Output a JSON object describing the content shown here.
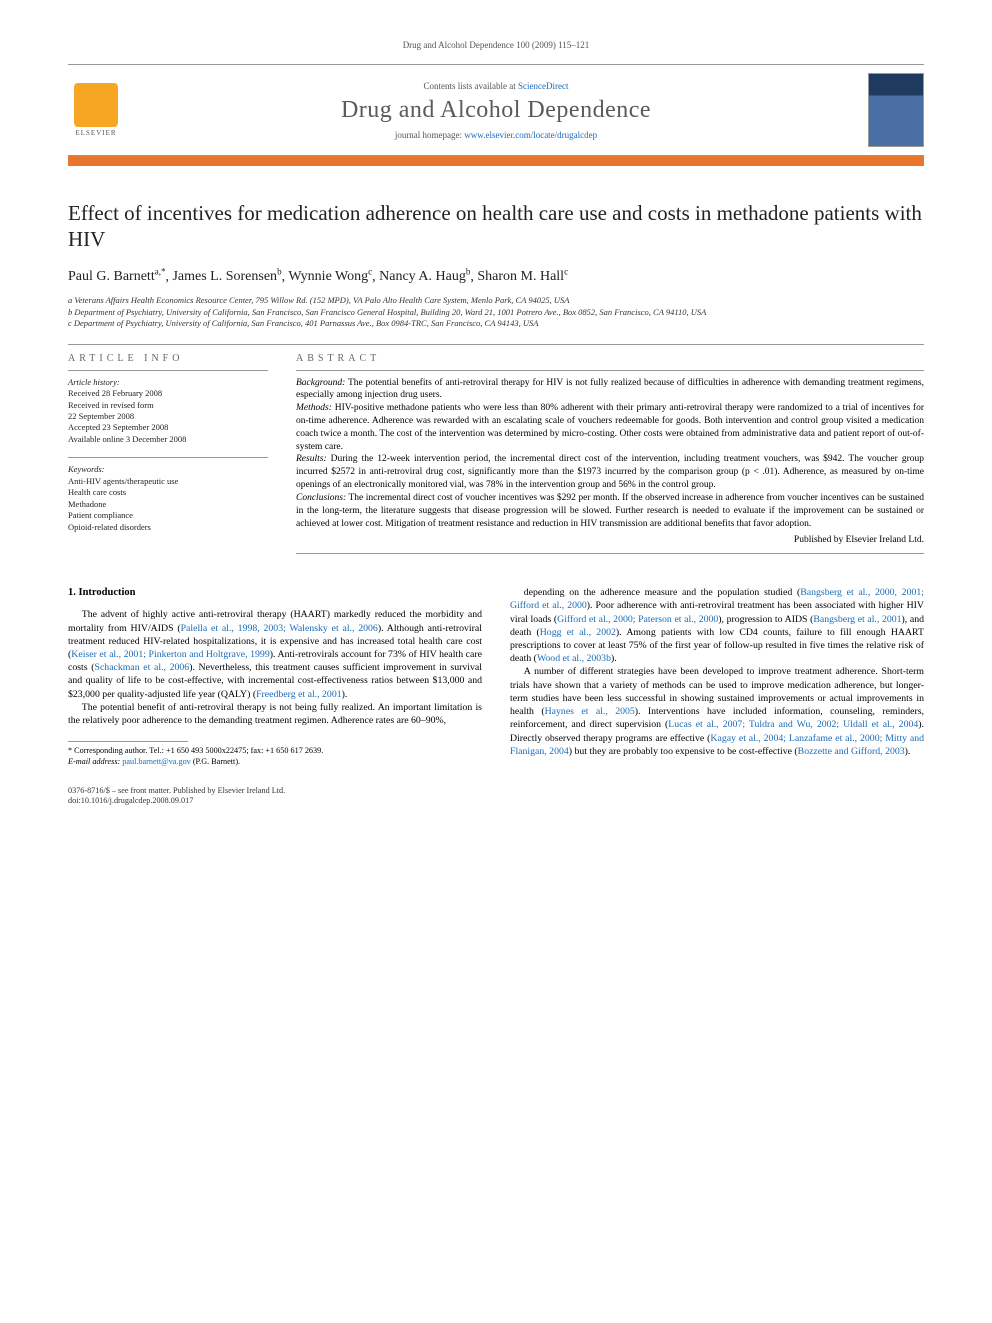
{
  "running_head": "Drug and Alcohol Dependence 100 (2009) 115–121",
  "header": {
    "contents_prefix": "Contents lists available at ",
    "contents_link": "ScienceDirect",
    "journal_name": "Drug and Alcohol Dependence",
    "homepage_prefix": "journal homepage: ",
    "homepage_link": "www.elsevier.com/locate/drugalcdep",
    "publisher_logo_label": "ELSEVIER"
  },
  "title": "Effect of incentives for medication adherence on health care use and costs in methadone patients with HIV",
  "authors_html": "Paul G. Barnett",
  "authors": [
    {
      "name": "Paul G. Barnett",
      "marks": "a,*"
    },
    {
      "name": "James L. Sorensen",
      "marks": "b"
    },
    {
      "name": "Wynnie Wong",
      "marks": "c"
    },
    {
      "name": "Nancy A. Haug",
      "marks": "b"
    },
    {
      "name": "Sharon M. Hall",
      "marks": "c"
    }
  ],
  "affiliations": [
    "a Veterans Affairs Health Economics Resource Center, 795 Willow Rd. (152 MPD), VA Palo Alto Health Care System, Menlo Park, CA 94025, USA",
    "b Department of Psychiatry, University of California, San Francisco, San Francisco General Hospital, Building 20, Ward 21, 1001 Potrero Ave., Box 0852, San Francisco, CA 94110, USA",
    "c Department of Psychiatry, University of California, San Francisco, 401 Parnassus Ave., Box 0984-TRC, San Francisco, CA 94143, USA"
  ],
  "article_info": {
    "heading": "article info",
    "history_label": "Article history:",
    "history": [
      "Received 28 February 2008",
      "Received in revised form",
      "22 September 2008",
      "Accepted 23 September 2008",
      "Available online 3 December 2008"
    ],
    "keywords_label": "Keywords:",
    "keywords": [
      "Anti-HIV agents/therapeutic use",
      "Health care costs",
      "Methadone",
      "Patient compliance",
      "Opioid-related disorders"
    ]
  },
  "abstract": {
    "heading": "abstract",
    "sections": [
      {
        "label": "Background:",
        "text": "The potential benefits of anti-retroviral therapy for HIV is not fully realized because of difficulties in adherence with demanding treatment regimens, especially among injection drug users."
      },
      {
        "label": "Methods:",
        "text": "HIV-positive methadone patients who were less than 80% adherent with their primary anti-retroviral therapy were randomized to a trial of incentives for on-time adherence. Adherence was rewarded with an escalating scale of vouchers redeemable for goods. Both intervention and control group visited a medication coach twice a month. The cost of the intervention was determined by micro-costing. Other costs were obtained from administrative data and patient report of out-of-system care."
      },
      {
        "label": "Results:",
        "text": "During the 12-week intervention period, the incremental direct cost of the intervention, including treatment vouchers, was $942. The voucher group incurred $2572 in anti-retroviral drug cost, significantly more than the $1973 incurred by the comparison group (p < .01). Adherence, as measured by on-time openings of an electronically monitored vial, was 78% in the intervention group and 56% in the control group."
      },
      {
        "label": "Conclusions:",
        "text": "The incremental direct cost of voucher incentives was $292 per month. If the observed increase in adherence from voucher incentives can be sustained in the long-term, the literature suggests that disease progression will be slowed. Further research is needed to evaluate if the improvement can be sustained or achieved at lower cost. Mitigation of treatment resistance and reduction in HIV transmission are additional benefits that favor adoption."
      }
    ],
    "publisher_line": "Published by Elsevier Ireland Ltd."
  },
  "body": {
    "h1": "1. Introduction",
    "p1_a": "The advent of highly active anti-retroviral therapy (HAART) markedly reduced the morbidity and mortality from HIV/AIDS (",
    "p1_c1": "Palella et al., 1998, 2003; Walensky et al., 2006",
    "p1_b": "). Although anti-retroviral treatment reduced HIV-related hospitalizations, it is expensive and has increased total health care cost (",
    "p1_c2": "Keiser et al., 2001; Pinkerton and Holtgrave, 1999",
    "p1_c": "). Anti-retrovirals account for 73% of HIV health care costs (",
    "p1_c3": "Schackman et al., 2006",
    "p1_d": "). Nevertheless, this treatment causes sufficient improvement in survival and quality of life to be cost-effective, with incremental cost-effectiveness ratios between $13,000 and $23,000 per quality-adjusted life year (QALY) (",
    "p1_c4": "Freedberg et al., 2001",
    "p1_e": ").",
    "p2": "The potential benefit of anti-retroviral therapy is not being fully realized. An important limitation is the relatively poor adherence to the demanding treatment regimen. Adherence rates are 60–90%,",
    "p3_a": "depending on the adherence measure and the population studied (",
    "p3_c1": "Bangsberg et al., 2000, 2001; Gifford et al., 2000",
    "p3_b": "). Poor adherence with anti-retroviral treatment has been associated with higher HIV viral loads (",
    "p3_c2": "Gifford et al., 2000; Paterson et al., 2000",
    "p3_c": "), progression to AIDS (",
    "p3_c3": "Bangsberg et al., 2001",
    "p3_d": "), and death (",
    "p3_c4": "Hogg et al., 2002",
    "p3_e": "). Among patients with low CD4 counts, failure to fill enough HAART prescriptions to cover at least 75% of the first year of follow-up resulted in five times the relative risk of death (",
    "p3_c5": "Wood et al., 2003b",
    "p3_f": ").",
    "p4_a": "A number of different strategies have been developed to improve treatment adherence. Short-term trials have shown that a variety of methods can be used to improve medication adherence, but longer-term studies have been less successful in showing sustained improvements or actual improvements in health (",
    "p4_c1": "Haynes et al., 2005",
    "p4_b": "). Interventions have included information, counseling, reminders, reinforcement, and direct supervision (",
    "p4_c2": "Lucas et al., 2007; Tuldra and Wu, 2002; Uldall et al., 2004",
    "p4_c": "). Directly observed therapy programs are effective (",
    "p4_c3": "Kagay et al., 2004; Lanzafame et al., 2000; Mitty and Flanigan, 2004",
    "p4_d": ") but they are probably too expensive to be cost-effective (",
    "p4_c4": "Bozzette and Gifford, 2003",
    "p4_e": ")."
  },
  "footnote": {
    "corr": "* Corresponding author. Tel.: +1 650 493 5000x22475; fax: +1 650 617 2639.",
    "email_label": "E-mail address: ",
    "email": "paul.barnett@va.gov",
    "email_suffix": " (P.G. Barnett)."
  },
  "footer": {
    "line1": "0376-8716/$ – see front matter. Published by Elsevier Ireland Ltd.",
    "line2": "doi:10.1016/j.drugalcdep.2008.09.017"
  },
  "colors": {
    "accent_orange": "#e8762d",
    "link_blue": "#1a6bb8",
    "rule_gray": "#999999",
    "text_gray": "#555555"
  }
}
